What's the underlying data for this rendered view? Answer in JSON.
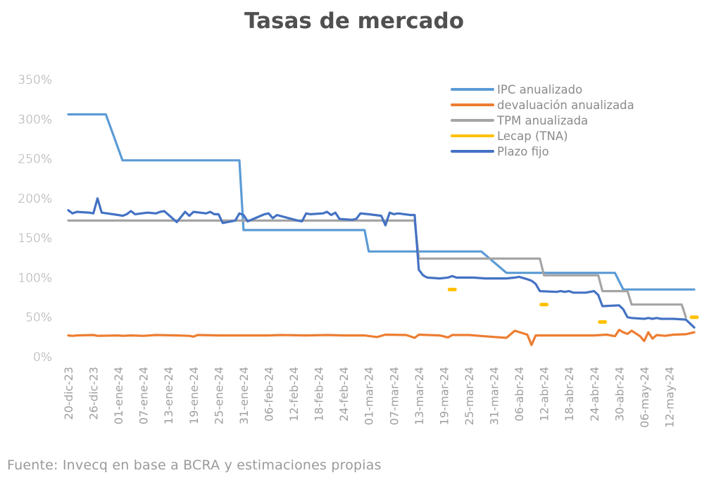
{
  "chart_data": {
    "type": "line",
    "title": "Tasas de mercado",
    "source": "Fuente: Invecq en base a BCRA y estimaciones propias",
    "y_ticks": [
      "350%",
      "300%",
      "250%",
      "200%",
      "150%",
      "100%",
      "50%",
      "0%"
    ],
    "ylim": [
      0,
      350
    ],
    "x_start": "2023-12-20",
    "x_end": "2024-05-18",
    "x_ticks": [
      {
        "date": "2023-12-20",
        "label": "20-dic-23"
      },
      {
        "date": "2023-12-26",
        "label": "26-dic-23"
      },
      {
        "date": "2024-01-01",
        "label": "01-ene-24"
      },
      {
        "date": "2024-01-07",
        "label": "07-ene-24"
      },
      {
        "date": "2024-01-13",
        "label": "13-ene-24"
      },
      {
        "date": "2024-01-19",
        "label": "19-ene-24"
      },
      {
        "date": "2024-01-25",
        "label": "25-ene-24"
      },
      {
        "date": "2024-01-31",
        "label": "31-ene-24"
      },
      {
        "date": "2024-02-06",
        "label": "06-feb-24"
      },
      {
        "date": "2024-02-12",
        "label": "12-feb-24"
      },
      {
        "date": "2024-02-18",
        "label": "18-feb-24"
      },
      {
        "date": "2024-02-24",
        "label": "24-feb-24"
      },
      {
        "date": "2024-03-01",
        "label": "01-mar-24"
      },
      {
        "date": "2024-03-07",
        "label": "07-mar-24"
      },
      {
        "date": "2024-03-13",
        "label": "13-mar-24"
      },
      {
        "date": "2024-03-19",
        "label": "19-mar-24"
      },
      {
        "date": "2024-03-25",
        "label": "25-mar-24"
      },
      {
        "date": "2024-03-31",
        "label": "31-mar-24"
      },
      {
        "date": "2024-04-06",
        "label": "06-abr-24"
      },
      {
        "date": "2024-04-12",
        "label": "12-abr-24"
      },
      {
        "date": "2024-04-18",
        "label": "18-abr-24"
      },
      {
        "date": "2024-04-24",
        "label": "24-abr-24"
      },
      {
        "date": "2024-04-30",
        "label": "30-abr-24"
      },
      {
        "date": "2024-05-06",
        "label": "06-may-24"
      },
      {
        "date": "2024-05-12",
        "label": "12-may-24"
      }
    ],
    "legend_position": "top-right",
    "series": [
      {
        "name": "IPC anualizado",
        "color": "#5b9bd5",
        "style": "line",
        "points": [
          [
            "2023-12-20",
            306
          ],
          [
            "2023-12-29",
            306
          ],
          [
            "2024-01-02",
            248
          ],
          [
            "2024-01-30",
            248
          ],
          [
            "2024-01-31",
            160
          ],
          [
            "2024-02-29",
            160
          ],
          [
            "2024-03-01",
            133
          ],
          [
            "2024-03-28",
            133
          ],
          [
            "2024-04-03",
            106
          ],
          [
            "2024-04-29",
            106
          ],
          [
            "2024-05-01",
            85
          ],
          [
            "2024-05-18",
            85
          ]
        ]
      },
      {
        "name": "devaluación anualizada",
        "color": "#ed7d31",
        "style": "line",
        "points": [
          [
            "2023-12-20",
            27
          ],
          [
            "2023-12-21",
            26.5
          ],
          [
            "2023-12-22",
            27
          ],
          [
            "2023-12-26",
            27.5
          ],
          [
            "2023-12-27",
            26.5
          ],
          [
            "2024-01-01",
            27
          ],
          [
            "2024-01-02",
            26.5
          ],
          [
            "2024-01-04",
            27
          ],
          [
            "2024-01-07",
            26.5
          ],
          [
            "2024-01-10",
            27.5
          ],
          [
            "2024-01-15",
            27
          ],
          [
            "2024-01-18",
            26.5
          ],
          [
            "2024-01-19",
            25.5
          ],
          [
            "2024-01-20",
            27.5
          ],
          [
            "2024-01-25",
            27
          ],
          [
            "2024-01-31",
            27
          ],
          [
            "2024-02-06",
            27
          ],
          [
            "2024-02-09",
            27.5
          ],
          [
            "2024-02-15",
            27
          ],
          [
            "2024-02-20",
            27.5
          ],
          [
            "2024-02-24",
            27
          ],
          [
            "2024-02-29",
            27
          ],
          [
            "2024-03-03",
            25
          ],
          [
            "2024-03-05",
            28
          ],
          [
            "2024-03-10",
            27.5
          ],
          [
            "2024-03-12",
            24
          ],
          [
            "2024-03-13",
            28
          ],
          [
            "2024-03-18",
            27
          ],
          [
            "2024-03-20",
            24.5
          ],
          [
            "2024-03-21",
            27.5
          ],
          [
            "2024-03-25",
            27.5
          ],
          [
            "2024-03-30",
            25.5
          ],
          [
            "2024-04-03",
            24
          ],
          [
            "2024-04-05",
            33
          ],
          [
            "2024-04-08",
            28
          ],
          [
            "2024-04-09",
            15
          ],
          [
            "2024-04-10",
            27
          ],
          [
            "2024-04-15",
            27
          ],
          [
            "2024-04-20",
            27
          ],
          [
            "2024-04-24",
            27
          ],
          [
            "2024-04-27",
            28
          ],
          [
            "2024-04-29",
            26
          ],
          [
            "2024-04-30",
            34
          ],
          [
            "2024-05-01",
            31
          ],
          [
            "2024-05-02",
            29
          ],
          [
            "2024-05-03",
            33
          ],
          [
            "2024-05-05",
            26
          ],
          [
            "2024-05-06",
            20
          ],
          [
            "2024-05-07",
            31
          ],
          [
            "2024-05-08",
            23
          ],
          [
            "2024-05-09",
            27.5
          ],
          [
            "2024-05-11",
            26.5
          ],
          [
            "2024-05-13",
            28
          ],
          [
            "2024-05-16",
            28.5
          ],
          [
            "2024-05-18",
            31
          ]
        ]
      },
      {
        "name": "TPM anualizada",
        "color": "#a5a5a5",
        "style": "line",
        "points": [
          [
            "2023-12-20",
            172
          ],
          [
            "2024-03-12",
            172
          ],
          [
            "2024-03-13",
            124
          ],
          [
            "2024-04-11",
            124
          ],
          [
            "2024-04-12",
            103
          ],
          [
            "2024-04-25",
            103
          ],
          [
            "2024-04-26",
            83
          ],
          [
            "2024-05-02",
            83
          ],
          [
            "2024-05-03",
            66
          ],
          [
            "2024-05-15",
            66
          ],
          [
            "2024-05-16",
            50
          ]
        ]
      },
      {
        "name": "Lecap (TNA)",
        "color": "#ffc000",
        "style": "dash",
        "points": [
          [
            "2024-03-21",
            85
          ],
          [
            "2024-04-12",
            66
          ],
          [
            "2024-04-26",
            44
          ],
          [
            "2024-05-18",
            50
          ]
        ]
      },
      {
        "name": "Plazo fijo",
        "color": "#4472c4",
        "style": "line",
        "points": [
          [
            "2023-12-20",
            185
          ],
          [
            "2023-12-21",
            181
          ],
          [
            "2023-12-22",
            183
          ],
          [
            "2023-12-25",
            182
          ],
          [
            "2023-12-26",
            181
          ],
          [
            "2023-12-27",
            200
          ],
          [
            "2023-12-28",
            182
          ],
          [
            "2024-01-01",
            179
          ],
          [
            "2024-01-02",
            178
          ],
          [
            "2024-01-03",
            180
          ],
          [
            "2024-01-04",
            184
          ],
          [
            "2024-01-05",
            180
          ],
          [
            "2024-01-08",
            182
          ],
          [
            "2024-01-10",
            181
          ],
          [
            "2024-01-11",
            183
          ],
          [
            "2024-01-12",
            184
          ],
          [
            "2024-01-15",
            170
          ],
          [
            "2024-01-17",
            183
          ],
          [
            "2024-01-18",
            178
          ],
          [
            "2024-01-19",
            183
          ],
          [
            "2024-01-22",
            181
          ],
          [
            "2024-01-23",
            183
          ],
          [
            "2024-01-24",
            180
          ],
          [
            "2024-01-25",
            180
          ],
          [
            "2024-01-26",
            169
          ],
          [
            "2024-01-29",
            172
          ],
          [
            "2024-01-30",
            181
          ],
          [
            "2024-01-31",
            179
          ],
          [
            "2024-02-01",
            171
          ],
          [
            "2024-02-05",
            180
          ],
          [
            "2024-02-06",
            181
          ],
          [
            "2024-02-07",
            175
          ],
          [
            "2024-02-08",
            179
          ],
          [
            "2024-02-13",
            172
          ],
          [
            "2024-02-14",
            171
          ],
          [
            "2024-02-15",
            181
          ],
          [
            "2024-02-16",
            180
          ],
          [
            "2024-02-19",
            181
          ],
          [
            "2024-02-20",
            183
          ],
          [
            "2024-02-21",
            179
          ],
          [
            "2024-02-22",
            182
          ],
          [
            "2024-02-23",
            174
          ],
          [
            "2024-02-26",
            173
          ],
          [
            "2024-02-27",
            174
          ],
          [
            "2024-02-28",
            181
          ],
          [
            "2024-03-01",
            180
          ],
          [
            "2024-03-04",
            178
          ],
          [
            "2024-03-05",
            166
          ],
          [
            "2024-03-06",
            182
          ],
          [
            "2024-03-07",
            180
          ],
          [
            "2024-03-08",
            181
          ],
          [
            "2024-03-11",
            179
          ],
          [
            "2024-03-12",
            179
          ],
          [
            "2024-03-13",
            110
          ],
          [
            "2024-03-14",
            103
          ],
          [
            "2024-03-15",
            100
          ],
          [
            "2024-03-18",
            99
          ],
          [
            "2024-03-20",
            100
          ],
          [
            "2024-03-21",
            102
          ],
          [
            "2024-03-22",
            100
          ],
          [
            "2024-03-26",
            100
          ],
          [
            "2024-03-29",
            99
          ],
          [
            "2024-04-03",
            99
          ],
          [
            "2024-04-05",
            100
          ],
          [
            "2024-04-06",
            101
          ],
          [
            "2024-04-08",
            98
          ],
          [
            "2024-04-09",
            96
          ],
          [
            "2024-04-10",
            92
          ],
          [
            "2024-04-11",
            83
          ],
          [
            "2024-04-15",
            82
          ],
          [
            "2024-04-16",
            83
          ],
          [
            "2024-04-17",
            82
          ],
          [
            "2024-04-18",
            83
          ],
          [
            "2024-04-19",
            81
          ],
          [
            "2024-04-22",
            81
          ],
          [
            "2024-04-23",
            82
          ],
          [
            "2024-04-24",
            83
          ],
          [
            "2024-04-25",
            78
          ],
          [
            "2024-04-26",
            64
          ],
          [
            "2024-04-30",
            65
          ],
          [
            "2024-05-01",
            60
          ],
          [
            "2024-05-02",
            50
          ],
          [
            "2024-05-03",
            49
          ],
          [
            "2024-05-06",
            48
          ],
          [
            "2024-05-07",
            49
          ],
          [
            "2024-05-08",
            48
          ],
          [
            "2024-05-09",
            49
          ],
          [
            "2024-05-10",
            48
          ],
          [
            "2024-05-13",
            48
          ],
          [
            "2024-05-16",
            47
          ],
          [
            "2024-05-18",
            37
          ]
        ]
      }
    ]
  }
}
